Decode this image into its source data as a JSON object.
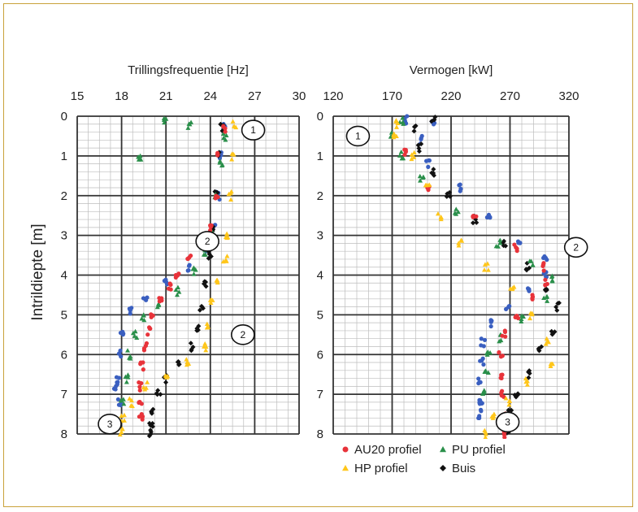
{
  "colors": {
    "frame": "#c9a23a",
    "AU20": "#e8333a",
    "PU": "#2a8f4a",
    "HP": "#ffc61a",
    "Buis": "#111111",
    "blue": "#3a5fc0"
  },
  "y_axis_label": "Intrildiepte [m]",
  "chart_data": [
    {
      "type": "scatter",
      "title": "Trillingsfrequentie [Hz]",
      "xlabel": "Trillingsfrequentie [Hz]",
      "ylabel": "Intrildiepte [m]",
      "xlim": [
        15,
        30
      ],
      "ylim": [
        0,
        8
      ],
      "x_ticks": [
        "15",
        "18",
        "21",
        "24",
        "27",
        "30"
      ],
      "y_ticks": [
        "0",
        "1",
        "2",
        "3",
        "4",
        "5",
        "6",
        "7",
        "8"
      ],
      "y_reversed": true,
      "x_axis_position": "top",
      "grid": true,
      "annotations": [
        {
          "label": "1",
          "x": 26.9,
          "y": 0.35
        },
        {
          "label": "2",
          "x": 23.8,
          "y": 3.15
        },
        {
          "label": "2",
          "x": 26.2,
          "y": 5.5
        },
        {
          "label": "3",
          "x": 17.2,
          "y": 7.75
        }
      ],
      "series": [
        {
          "name": "AU20 profiel",
          "color": "#e8333a",
          "points": [
            [
              25.0,
              0.3
            ],
            [
              24.6,
              1.0
            ],
            [
              24.4,
              2.0
            ],
            [
              24.0,
              2.8
            ],
            [
              23.3,
              3.2
            ],
            [
              22.6,
              3.6
            ],
            [
              21.8,
              4.0
            ],
            [
              21.2,
              4.3
            ],
            [
              20.6,
              4.6
            ],
            [
              20.1,
              5.0
            ],
            [
              19.9,
              5.4
            ],
            [
              19.6,
              5.8
            ],
            [
              19.4,
              6.3
            ],
            [
              19.3,
              6.8
            ],
            [
              19.3,
              7.2
            ],
            [
              19.3,
              7.6
            ]
          ]
        },
        {
          "name": "PU profiel",
          "color": "#2a8f4a",
          "points": [
            [
              20.9,
              0.15
            ],
            [
              22.6,
              0.25
            ],
            [
              19.2,
              1.0
            ],
            [
              25.0,
              0.5
            ],
            [
              24.7,
              1.2
            ],
            [
              24.4,
              2.0
            ],
            [
              24.1,
              2.9
            ],
            [
              23.6,
              3.4
            ],
            [
              22.9,
              3.9
            ],
            [
              21.8,
              4.4
            ],
            [
              20.5,
              4.8
            ],
            [
              19.5,
              5.1
            ],
            [
              18.9,
              5.5
            ],
            [
              18.5,
              6.0
            ],
            [
              18.4,
              6.6
            ],
            [
              18.1,
              7.2
            ]
          ]
        },
        {
          "name": "HP profiel",
          "color": "#ffc61a",
          "points": [
            [
              25.6,
              0.2
            ],
            [
              25.5,
              1.0
            ],
            [
              25.3,
              2.0
            ],
            [
              25.1,
              3.0
            ],
            [
              25.0,
              3.6
            ],
            [
              24.5,
              4.2
            ],
            [
              24.1,
              4.7
            ],
            [
              23.9,
              5.3
            ],
            [
              23.6,
              5.8
            ],
            [
              22.5,
              6.2
            ],
            [
              21.0,
              6.5
            ],
            [
              19.6,
              6.8
            ],
            [
              18.6,
              7.2
            ],
            [
              18.1,
              7.6
            ],
            [
              18.0,
              7.95
            ]
          ]
        },
        {
          "name": "Buis",
          "color": "#111111",
          "points": [
            [
              24.8,
              0.3
            ],
            [
              24.6,
              1.0
            ],
            [
              24.4,
              2.0
            ],
            [
              24.2,
              2.8
            ],
            [
              24.0,
              3.5
            ],
            [
              23.7,
              4.2
            ],
            [
              23.4,
              4.8
            ],
            [
              23.1,
              5.3
            ],
            [
              22.7,
              5.8
            ],
            [
              21.8,
              6.2
            ],
            [
              21.0,
              6.6
            ],
            [
              20.5,
              7.0
            ],
            [
              20.1,
              7.4
            ],
            [
              20.0,
              7.8
            ],
            [
              20.0,
              8.0
            ]
          ]
        },
        {
          "name": "",
          "color": "#3a5fc0",
          "points": [
            [
              25.0,
              0.25
            ],
            [
              24.7,
              1.0
            ],
            [
              24.5,
              2.0
            ],
            [
              24.2,
              2.8
            ],
            [
              23.8,
              3.3
            ],
            [
              22.6,
              3.8
            ],
            [
              21.0,
              4.2
            ],
            [
              19.6,
              4.6
            ],
            [
              18.6,
              4.9
            ],
            [
              18.0,
              5.4
            ],
            [
              17.9,
              6.0
            ],
            [
              17.8,
              6.6
            ],
            [
              17.6,
              6.8
            ],
            [
              17.9,
              7.2
            ]
          ]
        }
      ]
    },
    {
      "type": "scatter",
      "title": "Vermogen [kW]",
      "xlabel": "Vermogen [kW]",
      "ylabel": "Intrildiepte [m]",
      "xlim": [
        120,
        320
      ],
      "ylim": [
        0,
        8
      ],
      "x_ticks": [
        "120",
        "170",
        "220",
        "270",
        "320"
      ],
      "y_ticks": [
        "0",
        "1",
        "2",
        "3",
        "4",
        "5",
        "6",
        "7",
        "8"
      ],
      "y_reversed": true,
      "x_axis_position": "top",
      "grid": true,
      "legend": "bottom",
      "annotations": [
        {
          "label": "1",
          "x": 141,
          "y": 0.5
        },
        {
          "label": "2",
          "x": 326,
          "y": 3.3
        },
        {
          "label": "3",
          "x": 268,
          "y": 7.7
        }
      ],
      "series": [
        {
          "name": "AU20 profiel",
          "color": "#e8333a",
          "points": [
            [
              180,
              0.9
            ],
            [
              200,
              1.8
            ],
            [
              240,
              2.6
            ],
            [
              275,
              3.3
            ],
            [
              298,
              3.8
            ],
            [
              300,
              4.2
            ],
            [
              288,
              4.6
            ],
            [
              276,
              5.0
            ],
            [
              265,
              5.5
            ],
            [
              262,
              6.0
            ],
            [
              262,
              6.5
            ],
            [
              264,
              7.0
            ],
            [
              265,
              7.5
            ],
            [
              266,
              8.0
            ]
          ]
        },
        {
          "name": "PU profiel",
          "color": "#2a8f4a",
          "points": [
            [
              178,
              0.1
            ],
            [
              170,
              0.5
            ],
            [
              178,
              1.0
            ],
            [
              195,
              1.6
            ],
            [
              225,
              2.4
            ],
            [
              260,
              3.2
            ],
            [
              288,
              3.7
            ],
            [
              305,
              4.1
            ],
            [
              300,
              4.6
            ],
            [
              280,
              5.1
            ],
            [
              262,
              5.6
            ],
            [
              252,
              6.0
            ],
            [
              250,
              6.5
            ],
            [
              248,
              6.9
            ]
          ]
        },
        {
          "name": "HP profiel",
          "color": "#ffc61a",
          "points": [
            [
              175,
              0.2
            ],
            [
              172,
              0.5
            ],
            [
              188,
              1.0
            ],
            [
              200,
              1.8
            ],
            [
              210,
              2.5
            ],
            [
              228,
              3.2
            ],
            [
              250,
              3.8
            ],
            [
              272,
              4.4
            ],
            [
              288,
              5.0
            ],
            [
              302,
              5.7
            ],
            [
              305,
              6.2
            ],
            [
              285,
              6.7
            ],
            [
              268,
              7.2
            ],
            [
              255,
              7.6
            ],
            [
              250,
              8.0
            ]
          ]
        },
        {
          "name": "Buis",
          "color": "#111111",
          "points": [
            [
              205,
              0.05
            ],
            [
              190,
              0.3
            ],
            [
              193,
              0.8
            ],
            [
              205,
              1.4
            ],
            [
              218,
              2.0
            ],
            [
              240,
              2.6
            ],
            [
              265,
              3.2
            ],
            [
              285,
              3.8
            ],
            [
              300,
              4.3
            ],
            [
              310,
              4.8
            ],
            [
              307,
              5.4
            ],
            [
              296,
              5.9
            ],
            [
              285,
              6.5
            ],
            [
              275,
              7.0
            ],
            [
              270,
              7.5
            ],
            [
              268,
              7.9
            ]
          ]
        },
        {
          "name": "",
          "color": "#3a5fc0",
          "points": [
            [
              182,
              0.1
            ],
            [
              205,
              0.2
            ],
            [
              195,
              0.6
            ],
            [
              200,
              1.2
            ],
            [
              228,
              1.8
            ],
            [
              252,
              2.5
            ],
            [
              278,
              3.1
            ],
            [
              300,
              3.6
            ],
            [
              300,
              4.0
            ],
            [
              285,
              4.4
            ],
            [
              268,
              4.8
            ],
            [
              254,
              5.2
            ],
            [
              247,
              5.7
            ],
            [
              246,
              6.2
            ],
            [
              244,
              6.7
            ],
            [
              245,
              7.2
            ],
            [
              246,
              7.3
            ],
            [
              244,
              7.5
            ]
          ]
        }
      ]
    }
  ],
  "legend": [
    {
      "label": "AU20 profiel",
      "color": "#e8333a",
      "marker": "circle"
    },
    {
      "label": "PU profiel",
      "color": "#2a8f4a",
      "marker": "triangle"
    },
    {
      "label": "HP profiel",
      "color": "#ffc61a",
      "marker": "triangle"
    },
    {
      "label": "Buis",
      "color": "#111111",
      "marker": "diamond"
    }
  ]
}
